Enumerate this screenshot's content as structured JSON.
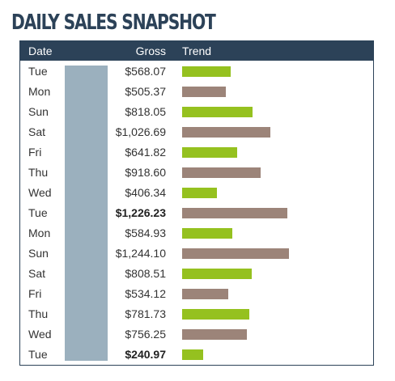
{
  "title": "DAILY SALES SNAPSHOT",
  "table": {
    "headers": {
      "date": "Date",
      "gross": "Gross",
      "trend": "Trend"
    },
    "colors": {
      "header_bg": "#2c4258",
      "shade_col": "#9bb0be",
      "bar_up": "#95c11f",
      "bar_down": "#9c8479"
    },
    "trend_max_value": 1244.1,
    "rows": [
      {
        "date": "Tue",
        "gross": "$568.07",
        "value": 568.07,
        "trend": "up",
        "bold": false
      },
      {
        "date": "Mon",
        "gross": "$505.37",
        "value": 505.37,
        "trend": "down",
        "bold": false
      },
      {
        "date": "Sun",
        "gross": "$818.05",
        "value": 818.05,
        "trend": "up",
        "bold": false
      },
      {
        "date": "Sat",
        "gross": "$1,026.69",
        "value": 1026.69,
        "trend": "down",
        "bold": false
      },
      {
        "date": "Fri",
        "gross": "$641.82",
        "value": 641.82,
        "trend": "up",
        "bold": false
      },
      {
        "date": "Thu",
        "gross": "$918.60",
        "value": 918.6,
        "trend": "down",
        "bold": false
      },
      {
        "date": "Wed",
        "gross": "$406.34",
        "value": 406.34,
        "trend": "up",
        "bold": false
      },
      {
        "date": "Tue",
        "gross": "$1,226.23",
        "value": 1226.23,
        "trend": "down",
        "bold": true
      },
      {
        "date": "Mon",
        "gross": "$584.93",
        "value": 584.93,
        "trend": "up",
        "bold": false
      },
      {
        "date": "Sun",
        "gross": "$1,244.10",
        "value": 1244.1,
        "trend": "down",
        "bold": false
      },
      {
        "date": "Sat",
        "gross": "$808.51",
        "value": 808.51,
        "trend": "up",
        "bold": false
      },
      {
        "date": "Fri",
        "gross": "$534.12",
        "value": 534.12,
        "trend": "down",
        "bold": false
      },
      {
        "date": "Thu",
        "gross": "$781.73",
        "value": 781.73,
        "trend": "up",
        "bold": false
      },
      {
        "date": "Wed",
        "gross": "$756.25",
        "value": 756.25,
        "trend": "down",
        "bold": false
      },
      {
        "date": "Tue",
        "gross": "$240.97",
        "value": 240.97,
        "trend": "up",
        "bold": true
      }
    ]
  }
}
